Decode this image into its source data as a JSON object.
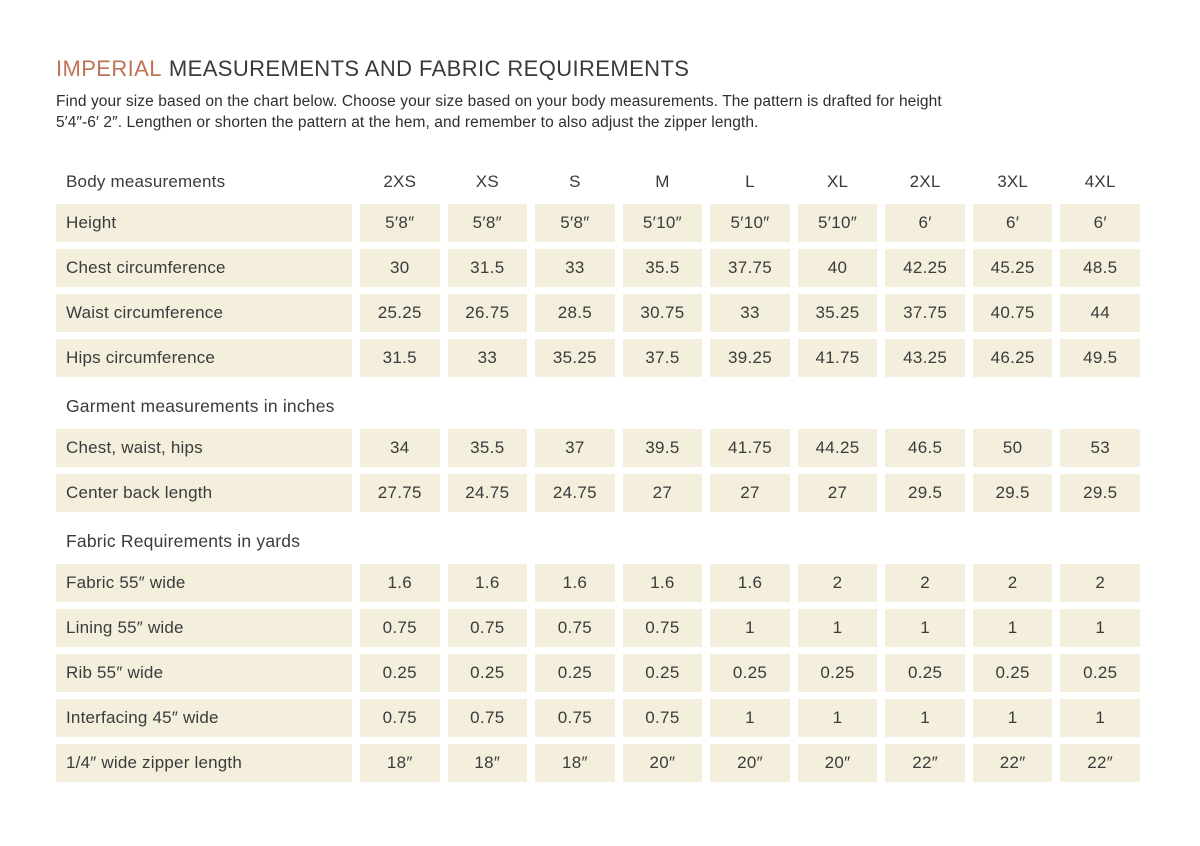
{
  "page": {
    "background": "#ffffff",
    "accent_color": "#bd7354",
    "cell_bg_color": "#f4eedc",
    "text_color": "#3b3b3b",
    "title_highlight": "IMPERIAL",
    "title_rest": "MEASUREMENTS AND FABRIC REQUIREMENTS",
    "subtitle_line1": "Find your size based on the chart below. Choose your size based on your body measurements. The pattern is drafted for height",
    "subtitle_line2": "5′4″-6′ 2″. Lengthen or shorten the pattern at the hem, and remember to also adjust the zipper length."
  },
  "table": {
    "header_label": "Body measurements",
    "size_columns": [
      "2XS",
      "XS",
      "S",
      "M",
      "L",
      "XL",
      "2XL",
      "3XL",
      "4XL"
    ],
    "sections": [
      {
        "heading": "",
        "rows": [
          {
            "label": "Height",
            "values": [
              "5′8″",
              "5′8″",
              "5′8″",
              "5′10″",
              "5′10″",
              "5′10″",
              "6′",
              "6′",
              "6′"
            ]
          },
          {
            "label": "Chest circumference",
            "values": [
              "30",
              "31.5",
              "33",
              "35.5",
              "37.75",
              "40",
              "42.25",
              "45.25",
              "48.5"
            ]
          },
          {
            "label": "Waist circumference",
            "values": [
              "25.25",
              "26.75",
              "28.5",
              "30.75",
              "33",
              "35.25",
              "37.75",
              "40.75",
              "44"
            ]
          },
          {
            "label": "Hips circumference",
            "values": [
              "31.5",
              "33",
              "35.25",
              "37.5",
              "39.25",
              "41.75",
              "43.25",
              "46.25",
              "49.5"
            ]
          }
        ]
      },
      {
        "heading": "Garment measurements in inches",
        "rows": [
          {
            "label": "Chest, waist, hips",
            "values": [
              "34",
              "35.5",
              "37",
              "39.5",
              "41.75",
              "44.25",
              "46.5",
              "50",
              "53"
            ]
          },
          {
            "label": "Center back length",
            "values": [
              "27.75",
              "24.75",
              "24.75",
              "27",
              "27",
              "27",
              "29.5",
              "29.5",
              "29.5"
            ]
          }
        ]
      },
      {
        "heading": "Fabric Requirements in yards",
        "rows": [
          {
            "label": "Fabric 55″ wide",
            "values": [
              "1.6",
              "1.6",
              "1.6",
              "1.6",
              "1.6",
              "2",
              "2",
              "2",
              "2"
            ]
          },
          {
            "label": "Lining 55″ wide",
            "values": [
              "0.75",
              "0.75",
              "0.75",
              "0.75",
              "1",
              "1",
              "1",
              "1",
              "1"
            ]
          },
          {
            "label": "Rib 55″ wide",
            "values": [
              "0.25",
              "0.25",
              "0.25",
              "0.25",
              "0.25",
              "0.25",
              "0.25",
              "0.25",
              "0.25"
            ]
          },
          {
            "label": "Interfacing 45″ wide",
            "values": [
              "0.75",
              "0.75",
              "0.75",
              "0.75",
              "1",
              "1",
              "1",
              "1",
              "1"
            ]
          },
          {
            "label": "1/4″ wide zipper length",
            "values": [
              "18″",
              "18″",
              "18″",
              "20″",
              "20″",
              "20″",
              "22″",
              "22″",
              "22″"
            ]
          }
        ]
      }
    ]
  }
}
